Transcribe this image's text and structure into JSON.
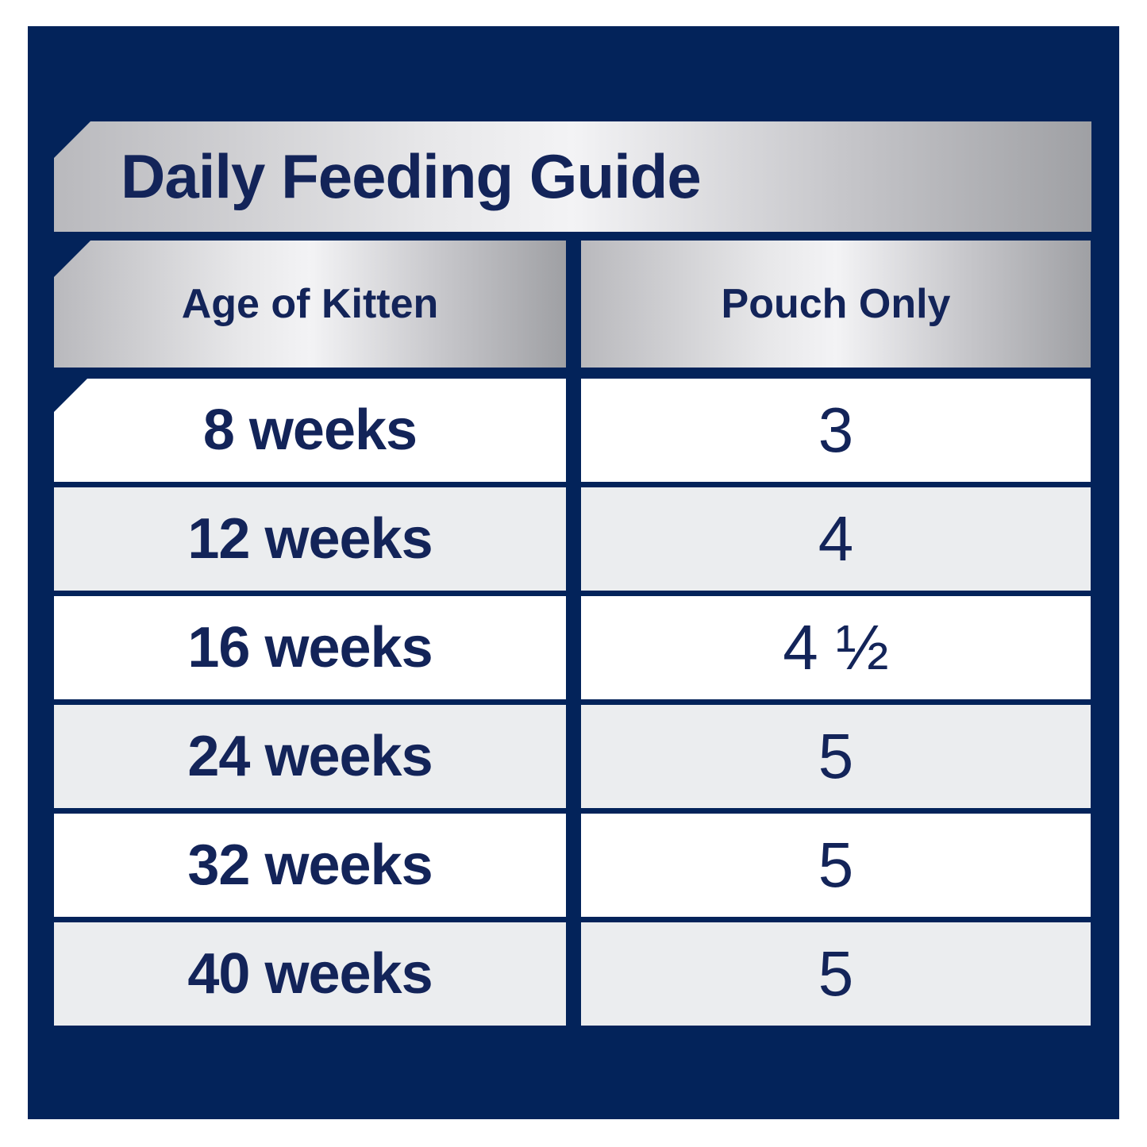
{
  "title": "Daily Feeding Guide",
  "table": {
    "columns": [
      {
        "label": "Age of Kitten"
      },
      {
        "label": "Pouch Only"
      }
    ],
    "rows": [
      {
        "age": "8 weeks",
        "value": "3"
      },
      {
        "age": "12 weeks",
        "value": "4"
      },
      {
        "age": "16 weeks",
        "value": "4 ½"
      },
      {
        "age": "24 weeks",
        "value": "5"
      },
      {
        "age": "32 weeks",
        "value": "5"
      },
      {
        "age": "40 weeks",
        "value": "5"
      }
    ]
  },
  "colors": {
    "panel_navy": "#03235a",
    "text_navy": "#132459",
    "row_alt_gray": "#ebedef",
    "row_white": "#ffffff",
    "silver_light": "#f3f3f5",
    "silver_dark": "#9fa0a4"
  }
}
